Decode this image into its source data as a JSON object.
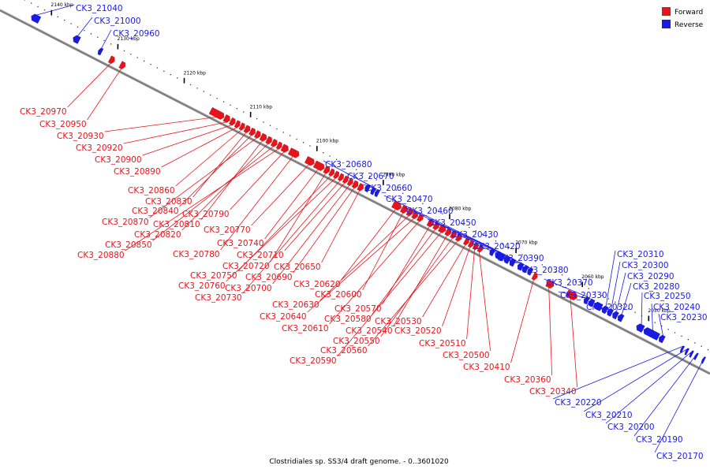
{
  "title": "Clostridiales sp. SS3/4 draft genome. - 0..3601020",
  "colors": {
    "forward": "#e8141c",
    "reverse": "#1a1ae6",
    "axis": "#808080"
  },
  "legend": [
    {
      "label": "Forward",
      "strand": "forward"
    },
    {
      "label": "Reverse",
      "strand": "reverse"
    }
  ],
  "axis": {
    "unit": "kbp",
    "ticks": [
      {
        "kbp": 2140,
        "label": "2140 kbp"
      },
      {
        "kbp": 2130,
        "label": "2130 kbp"
      },
      {
        "kbp": 2120,
        "label": "2120 kbp"
      },
      {
        "kbp": 2110,
        "label": "2110 kbp"
      },
      {
        "kbp": 2100,
        "label": "2100 kbp"
      },
      {
        "kbp": 2090,
        "label": "2090 kbp"
      },
      {
        "kbp": 2080,
        "label": "2080 kbp"
      },
      {
        "kbp": 2070,
        "label": "2070 kbp"
      },
      {
        "kbp": 2060,
        "label": "2060 kbp"
      },
      {
        "kbp": 2050,
        "label": "2050 kbp"
      }
    ]
  },
  "genes": [
    {
      "id": "CK3_21040",
      "strand": "reverse",
      "start": 2141.0,
      "end": 2142.2
    },
    {
      "id": "CK3_21000",
      "strand": "reverse",
      "start": 2135.0,
      "end": 2135.9
    },
    {
      "id": "CK3_20960",
      "strand": "reverse",
      "start": 2131.6,
      "end": 2132.1
    },
    {
      "id": "CK3_20970",
      "strand": "forward",
      "start": 2129.5,
      "end": 2130.2
    },
    {
      "id": "CK3_20950",
      "strand": "forward",
      "start": 2127.9,
      "end": 2128.6
    },
    {
      "id": "CK3_20930",
      "strand": "forward",
      "start": 2113.0,
      "end": 2115.0
    },
    {
      "id": "CK3_20920",
      "strand": "forward",
      "start": 2112.1,
      "end": 2112.9
    },
    {
      "id": "CK3_20900",
      "strand": "forward",
      "start": 2111.3,
      "end": 2112.0
    },
    {
      "id": "CK3_20890",
      "strand": "forward",
      "start": 2110.6,
      "end": 2111.2
    },
    {
      "id": "CK3_20860",
      "strand": "forward",
      "start": 2109.9,
      "end": 2110.5
    },
    {
      "id": "CK3_20830",
      "strand": "forward",
      "start": 2109.1,
      "end": 2109.8
    },
    {
      "id": "CK3_20840",
      "strand": "forward",
      "start": 2108.3,
      "end": 2109.0
    },
    {
      "id": "CK3_20870",
      "strand": "forward",
      "start": 2107.5,
      "end": 2108.2
    },
    {
      "id": "CK3_20810",
      "strand": "forward",
      "start": 2106.6,
      "end": 2107.4
    },
    {
      "id": "CK3_20820",
      "strand": "forward",
      "start": 2105.8,
      "end": 2106.5
    },
    {
      "id": "CK3_20850",
      "strand": "forward",
      "start": 2105.0,
      "end": 2105.7
    },
    {
      "id": "CK3_20880",
      "strand": "forward",
      "start": 2104.3,
      "end": 2104.9
    },
    {
      "id": "CK3_20790",
      "strand": "forward",
      "start": 2103.3,
      "end": 2104.2
    },
    {
      "id": "CK3_20780",
      "strand": "forward",
      "start": 2101.7,
      "end": 2103.1
    },
    {
      "id": "CK3_20770",
      "strand": "forward",
      "start": 2099.4,
      "end": 2100.6
    },
    {
      "id": "CK3_20740",
      "strand": "forward",
      "start": 2097.9,
      "end": 2099.3
    },
    {
      "id": "CK3_20720",
      "strand": "forward",
      "start": 2097.1,
      "end": 2097.8
    },
    {
      "id": "CK3_20750",
      "strand": "forward",
      "start": 2096.4,
      "end": 2097.0
    },
    {
      "id": "CK3_20760",
      "strand": "forward",
      "start": 2095.7,
      "end": 2096.3
    },
    {
      "id": "CK3_20730",
      "strand": "forward",
      "start": 2095.0,
      "end": 2095.6
    },
    {
      "id": "CK3_20710",
      "strand": "forward",
      "start": 2094.3,
      "end": 2094.9
    },
    {
      "id": "CK3_20700",
      "strand": "forward",
      "start": 2093.6,
      "end": 2094.2
    },
    {
      "id": "CK3_20690",
      "strand": "forward",
      "start": 2092.8,
      "end": 2093.5
    },
    {
      "id": "CK3_20650",
      "strand": "forward",
      "start": 2092.0,
      "end": 2092.7
    },
    {
      "id": "CK3_20680",
      "strand": "reverse",
      "start": 2091.3,
      "end": 2091.9
    },
    {
      "id": "CK3_20670",
      "strand": "reverse",
      "start": 2090.5,
      "end": 2091.0
    },
    {
      "id": "CK3_20660",
      "strand": "reverse",
      "start": 2089.9,
      "end": 2090.4
    },
    {
      "id": "CK3_20620",
      "strand": "forward",
      "start": 2086.3,
      "end": 2087.5
    },
    {
      "id": "CK3_20600",
      "strand": "forward",
      "start": 2085.4,
      "end": 2086.2
    },
    {
      "id": "CK3_20630",
      "strand": "forward",
      "start": 2084.6,
      "end": 2085.3
    },
    {
      "id": "CK3_20640",
      "strand": "forward",
      "start": 2083.8,
      "end": 2084.5
    },
    {
      "id": "CK3_20610",
      "strand": "forward",
      "start": 2083.0,
      "end": 2083.7
    },
    {
      "id": "CK3_20570",
      "strand": "forward",
      "start": 2081.4,
      "end": 2082.2
    },
    {
      "id": "CK3_20580",
      "strand": "forward",
      "start": 2080.6,
      "end": 2081.3
    },
    {
      "id": "CK3_20590",
      "strand": "forward",
      "start": 2079.6,
      "end": 2080.5
    },
    {
      "id": "CK3_20540",
      "strand": "forward",
      "start": 2078.8,
      "end": 2079.5
    },
    {
      "id": "CK3_20550",
      "strand": "forward",
      "start": 2078.0,
      "end": 2078.7
    },
    {
      "id": "CK3_20560",
      "strand": "forward",
      "start": 2077.2,
      "end": 2077.9
    },
    {
      "id": "CK3_20530",
      "strand": "forward",
      "start": 2076.1,
      "end": 2076.7
    },
    {
      "id": "CK3_20520",
      "strand": "forward",
      "start": 2075.4,
      "end": 2076.0
    },
    {
      "id": "CK3_20510",
      "strand": "forward",
      "start": 2074.7,
      "end": 2075.3
    },
    {
      "id": "CK3_20500",
      "strand": "forward",
      "start": 2074.0,
      "end": 2074.6
    },
    {
      "id": "CK3_20470",
      "strand": "reverse",
      "start": 2072.5,
      "end": 2073.1
    },
    {
      "id": "CK3_20460",
      "strand": "reverse",
      "start": 2071.0,
      "end": 2072.3
    },
    {
      "id": "CK3_20450",
      "strand": "reverse",
      "start": 2070.2,
      "end": 2070.9
    },
    {
      "id": "CK3_20430",
      "strand": "reverse",
      "start": 2069.4,
      "end": 2070.1
    },
    {
      "id": "CK3_20420",
      "strand": "reverse",
      "start": 2068.2,
      "end": 2068.9
    },
    {
      "id": "CK3_20390",
      "strand": "reverse",
      "start": 2067.5,
      "end": 2068.1
    },
    {
      "id": "CK3_20380",
      "strand": "reverse",
      "start": 2066.8,
      "end": 2067.4
    },
    {
      "id": "CK3_20410",
      "strand": "forward",
      "start": 2065.8,
      "end": 2066.4
    },
    {
      "id": "CK3_20360",
      "strand": "forward",
      "start": 2063.3,
      "end": 2064.3
    },
    {
      "id": "CK3_20340",
      "strand": "forward",
      "start": 2059.8,
      "end": 2061.3
    },
    {
      "id": "CK3_20370",
      "strand": "reverse",
      "start": 2058.3,
      "end": 2058.9
    },
    {
      "id": "CK3_20330",
      "strand": "reverse",
      "start": 2057.5,
      "end": 2058.2
    },
    {
      "id": "CK3_20320",
      "strand": "reverse",
      "start": 2056.3,
      "end": 2057.4
    },
    {
      "id": "CK3_20310",
      "strand": "reverse",
      "start": 2055.5,
      "end": 2056.2
    },
    {
      "id": "CK3_20300",
      "strand": "reverse",
      "start": 2054.7,
      "end": 2055.4
    },
    {
      "id": "CK3_20290",
      "strand": "reverse",
      "start": 2053.9,
      "end": 2054.6
    },
    {
      "id": "CK3_20280",
      "strand": "reverse",
      "start": 2053.1,
      "end": 2053.8
    },
    {
      "id": "CK3_20250",
      "strand": "reverse",
      "start": 2050.0,
      "end": 2051.0
    },
    {
      "id": "CK3_20240",
      "strand": "reverse",
      "start": 2047.7,
      "end": 2049.9
    },
    {
      "id": "CK3_20230",
      "strand": "reverse",
      "start": 2046.9,
      "end": 2047.6
    },
    {
      "id": "CK3_20220",
      "strand": "reverse",
      "start": 2044.0,
      "end": 2044.3
    },
    {
      "id": "CK3_20210",
      "strand": "reverse",
      "start": 2043.3,
      "end": 2043.6
    },
    {
      "id": "CK3_20200",
      "strand": "reverse",
      "start": 2042.6,
      "end": 2042.9
    },
    {
      "id": "CK3_20190",
      "strand": "reverse",
      "start": 2041.9,
      "end": 2042.2
    },
    {
      "id": "CK3_20170",
      "strand": "reverse",
      "start": 2040.8,
      "end": 2041.1
    }
  ]
}
